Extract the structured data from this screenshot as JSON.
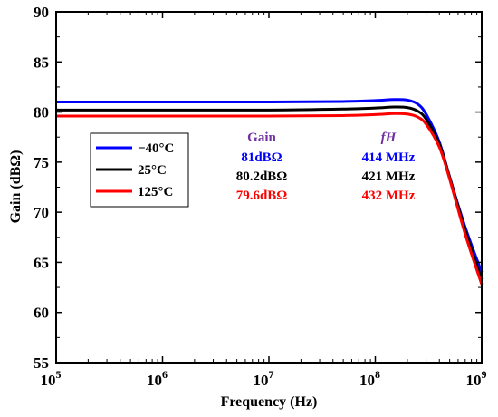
{
  "chart_data": {
    "type": "line",
    "xlabel": "Frequency (Hz)",
    "ylabel": "Gain (dBΩ)",
    "xscale": "log",
    "xlim": [
      100000,
      1000000000
    ],
    "ylim": [
      55,
      90
    ],
    "x_ticks": [
      {
        "value": 100000,
        "base": "10",
        "exp": "5"
      },
      {
        "value": 1000000,
        "base": "10",
        "exp": "6"
      },
      {
        "value": 10000000,
        "base": "10",
        "exp": "7"
      },
      {
        "value": 100000000,
        "base": "10",
        "exp": "8"
      },
      {
        "value": 1000000000,
        "base": "10",
        "exp": "9"
      }
    ],
    "y_ticks": [
      55,
      60,
      65,
      70,
      75,
      80,
      85,
      90
    ],
    "grid": false,
    "legend_position": "center-left",
    "series": [
      {
        "name": "−40°C",
        "color": "#0000ff",
        "x": [
          100000,
          1000000,
          10000000,
          50000000,
          100000000,
          150000000,
          200000000,
          250000000,
          300000000,
          400000000,
          500000000,
          700000000,
          1000000000
        ],
        "y": [
          81.0,
          81.0,
          81.0,
          81.05,
          81.15,
          81.25,
          81.2,
          80.8,
          79.8,
          77.0,
          73.5,
          68.5,
          64.0
        ]
      },
      {
        "name": "25°C",
        "color": "#000000",
        "x": [
          100000,
          1000000,
          10000000,
          50000000,
          100000000,
          150000000,
          200000000,
          250000000,
          300000000,
          400000000,
          500000000,
          700000000,
          1000000000
        ],
        "y": [
          80.2,
          80.2,
          80.2,
          80.3,
          80.4,
          80.5,
          80.45,
          80.1,
          79.3,
          76.8,
          73.5,
          68.2,
          63.3
        ]
      },
      {
        "name": "125°C",
        "color": "#ff0000",
        "x": [
          100000,
          1000000,
          10000000,
          50000000,
          100000000,
          150000000,
          200000000,
          250000000,
          300000000,
          400000000,
          500000000,
          700000000,
          1000000000
        ],
        "y": [
          79.6,
          79.6,
          79.6,
          79.65,
          79.75,
          79.85,
          79.8,
          79.5,
          78.8,
          76.5,
          73.3,
          67.8,
          62.8
        ]
      }
    ],
    "annotation_table": {
      "headers": {
        "gain": "Gain",
        "fh": "fH",
        "color": "#7030a0"
      },
      "rows": [
        {
          "gain": "81dBΩ",
          "fh": "414 MHz",
          "color": "#0000ff"
        },
        {
          "gain": "80.2dBΩ",
          "fh": "421 MHz",
          "color": "#000000"
        },
        {
          "gain": "79.6dBΩ",
          "fh": "432 MHz",
          "color": "#ff0000"
        }
      ]
    }
  }
}
